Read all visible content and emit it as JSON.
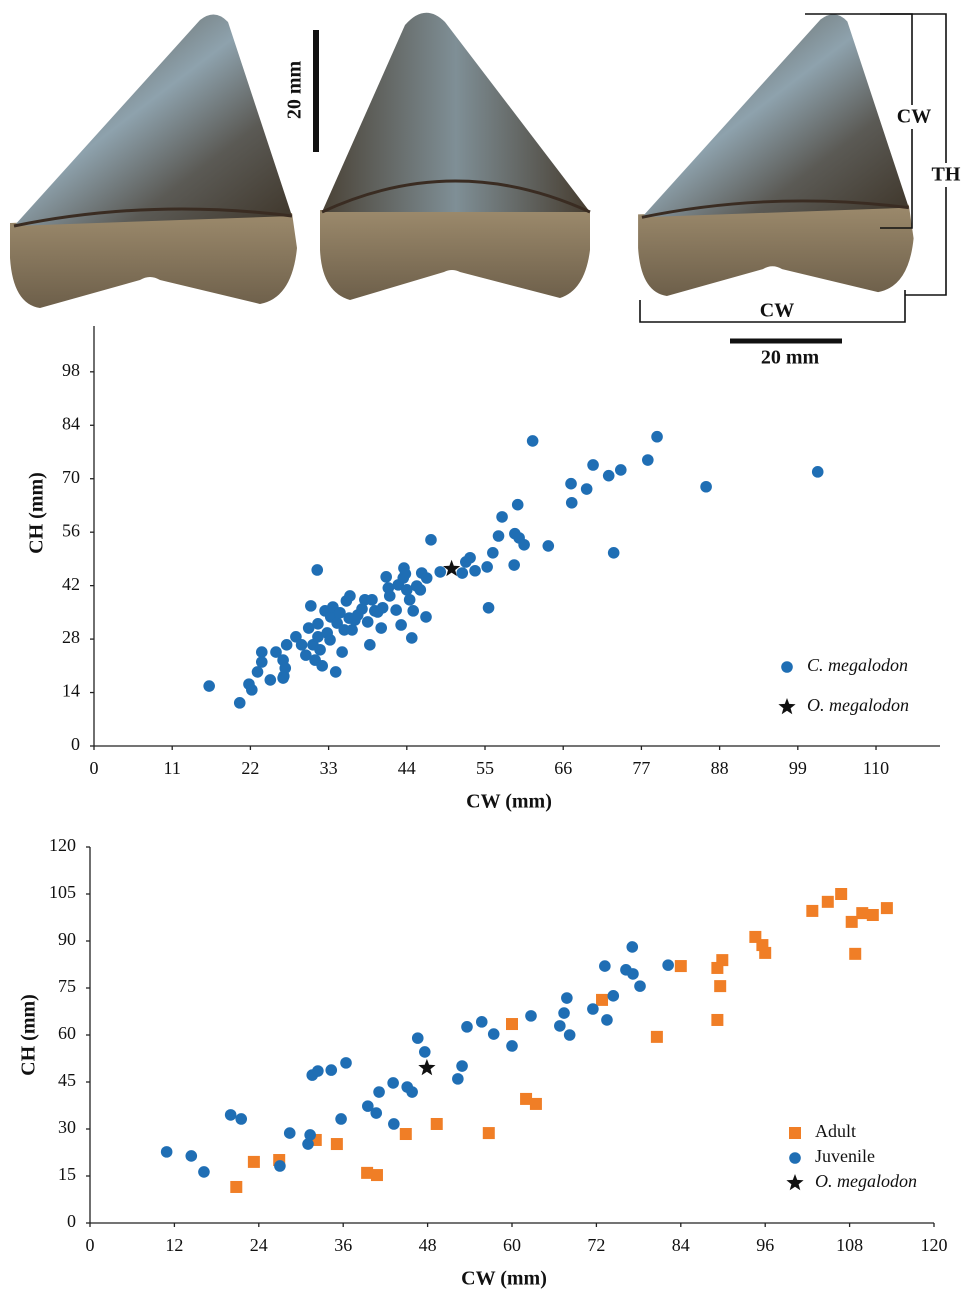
{
  "figure": {
    "scale_left": "20 mm",
    "bracket_crown": "CW",
    "bracket_total": "TH",
    "bracket_width": "CW",
    "scale_right": "20 mm"
  },
  "chart_data": [
    {
      "type": "scatter",
      "x_label": "CW (mm)",
      "y_label": "CH (mm)",
      "xlim": [
        0,
        119
      ],
      "ylim": [
        0,
        110
      ],
      "xticks": [
        0,
        11,
        22,
        33,
        44,
        55,
        66,
        77,
        88,
        99,
        110
      ],
      "yticks": [
        0,
        14,
        28,
        42,
        56,
        70,
        84,
        98
      ],
      "grid": false,
      "legend": "lower right",
      "series": [
        {
          "name": "C. megalodon",
          "color": "#1f6eb4",
          "marker": "circle",
          "x": [
            16.2,
            20.5,
            21.8,
            22.2,
            23.6,
            23.6,
            23,
            24.8,
            25.6,
            26.6,
            26.7,
            26.9,
            26.6,
            27.1,
            28.4,
            29.2,
            29.8,
            30.2,
            30.5,
            30.8,
            31.1,
            31.4,
            31.5,
            31.5,
            31.8,
            32.1,
            32.5,
            32.8,
            33.2,
            33.3,
            33.6,
            34,
            34.2,
            34.6,
            34.9,
            35.2,
            35.5,
            35.9,
            36,
            36.3,
            36.7,
            37.1,
            37.7,
            38.1,
            38.5,
            38.8,
            39.1,
            39.5,
            39.9,
            40.4,
            40.6,
            41.1,
            41.4,
            41.6,
            42.5,
            42.8,
            43.2,
            43.5,
            43.6,
            43.8,
            44,
            44.4,
            44.7,
            44.9,
            45.4,
            45.9,
            46.1,
            46.7,
            46.8,
            47.4,
            48.7,
            51.8,
            52.3,
            52.9,
            53.6,
            55.3,
            55.5,
            56.1,
            56.9,
            57.4,
            59.1,
            59.2,
            59.6,
            59.8,
            60.5,
            61.7,
            63.9,
            67.1,
            67.2,
            69.3,
            70.2,
            72.4,
            73.1,
            74.1,
            77.9,
            79.2,
            86.1,
            101.8
          ],
          "values": [
            15.7,
            11.3,
            16.2,
            14.7,
            24.6,
            22,
            19.4,
            17.3,
            24.6,
            22.5,
            18.3,
            20.4,
            17.8,
            26.5,
            28.6,
            26.5,
            23.8,
            30.9,
            36.7,
            26.5,
            22.5,
            46.1,
            32,
            28.6,
            25.2,
            21,
            35.4,
            29.6,
            27.8,
            33.8,
            36.4,
            19.4,
            32.2,
            34.9,
            24.6,
            30.4,
            38,
            33.5,
            39.3,
            30.4,
            33,
            34.3,
            35.9,
            38.3,
            32.5,
            26.5,
            38.3,
            35.4,
            35.1,
            30.9,
            36.2,
            44.3,
            41.4,
            39.3,
            35.6,
            42.2,
            31.7,
            44,
            46.6,
            45.1,
            40.9,
            38.3,
            28.3,
            35.4,
            41.9,
            40.9,
            45.3,
            33.8,
            44,
            54,
            45.6,
            45.3,
            48.2,
            49.3,
            45.9,
            46.9,
            36.2,
            50.6,
            55,
            60,
            47.4,
            55.6,
            63.2,
            54.5,
            52.7,
            79.9,
            52.4,
            68.7,
            63.7,
            67.3,
            73.6,
            70.8,
            50.6,
            72.3,
            74.9,
            81,
            67.9,
            71.8
          ]
        },
        {
          "name": "O. megalodon",
          "color": "#111111",
          "marker": "star",
          "x": [
            50.3
          ],
          "values": [
            46.4
          ]
        }
      ]
    },
    {
      "type": "scatter",
      "x_label": "CW (mm)",
      "y_label": "CH (mm)",
      "xlim": [
        0,
        120
      ],
      "ylim": [
        0,
        120
      ],
      "xticks": [
        0,
        12,
        24,
        36,
        48,
        60,
        72,
        84,
        96,
        108,
        120
      ],
      "yticks": [
        0,
        15,
        30,
        45,
        60,
        75,
        90,
        105,
        120
      ],
      "grid": false,
      "legend": "lower right",
      "series": [
        {
          "name": "Adult",
          "color": "#f07e26",
          "marker": "square",
          "x": [
            20.8,
            23.3,
            26.9,
            32.1,
            35.1,
            39.4,
            40.8,
            44.9,
            49.3,
            56.7,
            60,
            62,
            63.4,
            72.8,
            80.6,
            84,
            89.2,
            89.2,
            89.6,
            89.9,
            94.6,
            95.6,
            96,
            102.7,
            104.9,
            106.8,
            108.3,
            108.8,
            109.8,
            111.3,
            113.3
          ],
          "values": [
            11.5,
            19.5,
            20.1,
            26.5,
            25.2,
            16,
            15.3,
            28.4,
            31.6,
            28.7,
            63.5,
            39.6,
            38,
            71.2,
            59.4,
            82,
            64.8,
            81.4,
            75.6,
            83.9,
            91.3,
            88.7,
            86.2,
            99.6,
            102.5,
            105,
            96.1,
            85.9,
            98.9,
            98.3,
            100.5
          ]
        },
        {
          "name": "Juvenile",
          "color": "#1f6eb4",
          "marker": "circle",
          "x": [
            10.9,
            14.4,
            16.2,
            20,
            21.5,
            27,
            28.4,
            31,
            31.3,
            31.6,
            32.4,
            34.3,
            35.7,
            36.4,
            39.5,
            40.7,
            41.1,
            43.1,
            43.2,
            45.1,
            45.8,
            46.6,
            47.6,
            52.3,
            52.9,
            53.6,
            55.7,
            57.4,
            60,
            62.7,
            66.8,
            67.4,
            67.8,
            68.2,
            71.5,
            73.2,
            73.5,
            74.4,
            76.2,
            77.1,
            77.2,
            78.2,
            82.2
          ],
          "values": [
            22.7,
            21.4,
            16.3,
            34.5,
            33.2,
            18.2,
            28.7,
            25.2,
            28.1,
            47.2,
            48.5,
            48.8,
            33.2,
            51.1,
            37.3,
            35.1,
            41.8,
            44.7,
            31.6,
            43.4,
            41.8,
            59,
            54.6,
            46,
            50.1,
            62.6,
            64.2,
            60.3,
            56.5,
            66.1,
            62.9,
            67,
            71.8,
            60,
            68.3,
            82,
            64.8,
            72.5,
            80.8,
            88.1,
            79.5,
            75.6,
            82.3
          ]
        },
        {
          "name": "O. megalodon",
          "color": "#111111",
          "marker": "star",
          "x": [
            47.9
          ],
          "values": [
            49.5
          ]
        }
      ]
    }
  ]
}
